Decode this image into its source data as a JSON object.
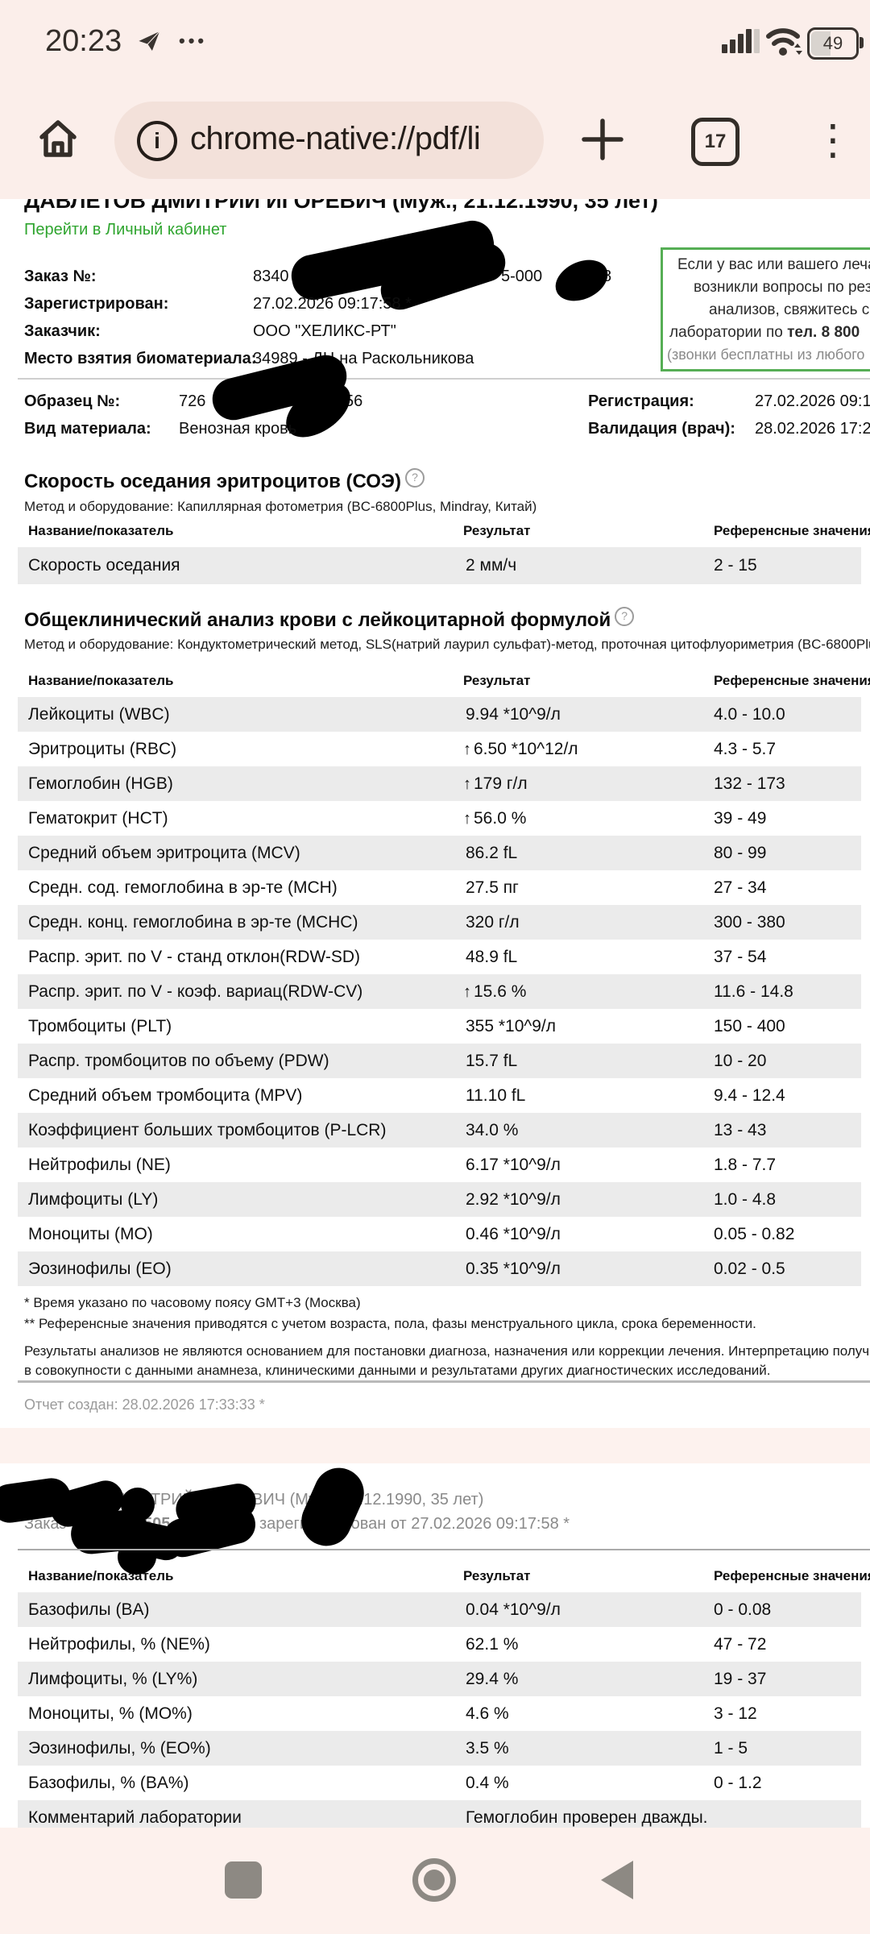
{
  "status_bar": {
    "time": "20:23",
    "battery_percent": "49"
  },
  "toolbar": {
    "url": "chrome-native://pdf/li",
    "tab_count": "17",
    "kebab_glyph": "⋮",
    "dots_glyph": "•••"
  },
  "page1": {
    "patient_header": "ДАВЛЕТОВ ДМИТРИЙ ИГОРЕВИЧ (Муж., 21.12.1990, 35 лет)",
    "account_link": "Перейти в Личный кабинет",
    "order": {
      "label": "Заказ №:",
      "frag1": "8340",
      "frag2": "5-000",
      "frag3": "8"
    },
    "registered": {
      "label": "Зарегистрирован:",
      "value": "27.02.2026 09:17:58 *"
    },
    "customer": {
      "label": "Заказчик:",
      "value": "ООО \"ХЕЛИКС-РТ\""
    },
    "site": {
      "label": "Место взятия биоматериала:",
      "value": "34989 - ДЦ на Раскольникова"
    },
    "notice": {
      "line1": "Если у вас или вашего леча",
      "line2": "возникли вопросы по рез",
      "line3": "анализов, свяжитесь с",
      "line4_text": "лаборатории по ",
      "line4_bold": "тел. 8 800",
      "line5": "(звонки бесплатны из любого"
    },
    "sample": {
      "label": "Образец №:",
      "frag1": "726",
      "frag2": "56"
    },
    "material": {
      "label": "Вид материала:",
      "value": "Венозная кровь"
    },
    "registration": {
      "label": "Регистрация:",
      "value": "27.02.2026 09:15"
    },
    "validation": {
      "label": "Валидация (врач):",
      "value": "28.02.2026 17:27"
    },
    "section1": {
      "title": "Скорость оседания эритроцитов (СОЭ)",
      "help": "?",
      "method": "Метод и оборудование: Капиллярная фотометрия (BC-6800Plus, Mindray, Китай)",
      "columns": [
        "Название/показатель",
        "Результат",
        "Референсные значения **"
      ],
      "rows": [
        {
          "name": "Скорость оседания",
          "flag": "",
          "result": "2 мм/ч",
          "ref": "2 - 15"
        }
      ]
    },
    "section2": {
      "title": "Общеклинический анализ крови с лейкоцитарной формулой",
      "help": "?",
      "method": "Метод и оборудование: Кондуктометрический метод, SLS(натрий лаурил сульфат)-метод, проточная цитофлуориметрия (BC-6800Plus, Mindray, Китай",
      "columns": [
        "Название/показатель",
        "Результат",
        "Референсные значения **"
      ],
      "rows": [
        {
          "name": "Лейкоциты (WBC)",
          "flag": "",
          "result": "9.94 *10^9/л",
          "ref": "4.0 - 10.0"
        },
        {
          "name": "Эритроциты (RBC)",
          "flag": "↑",
          "result": "6.50 *10^12/л",
          "ref": "4.3 - 5.7"
        },
        {
          "name": "Гемоглобин (HGB)",
          "flag": "↑",
          "result": "179 г/л",
          "ref": "132 - 173"
        },
        {
          "name": "Гематокрит (HCT)",
          "flag": "↑",
          "result": "56.0 %",
          "ref": "39 - 49"
        },
        {
          "name": "Средний объем эритроцита (MCV)",
          "flag": "",
          "result": "86.2 fL",
          "ref": "80 - 99"
        },
        {
          "name": "Средн. сод. гемоглобина в эр-те (MCH)",
          "flag": "",
          "result": "27.5 пг",
          "ref": "27 - 34"
        },
        {
          "name": "Средн. конц. гемоглобина в эр-те (MCHC)",
          "flag": "",
          "result": "320 г/л",
          "ref": "300 - 380"
        },
        {
          "name": "Распр. эрит. по V - станд отклон(RDW-SD)",
          "flag": "",
          "result": "48.9 fL",
          "ref": "37 - 54"
        },
        {
          "name": "Распр. эрит. по V - коэф. вариац(RDW-CV)",
          "flag": "↑",
          "result": "15.6 %",
          "ref": "11.6 - 14.8"
        },
        {
          "name": "Тромбоциты (PLT)",
          "flag": "",
          "result": "355 *10^9/л",
          "ref": "150 - 400"
        },
        {
          "name": "Распр. тромбоцитов по объему (PDW)",
          "flag": "",
          "result": "15.7 fL",
          "ref": "10 - 20"
        },
        {
          "name": "Средний объем тромбоцита (MPV)",
          "flag": "",
          "result": "11.10 fL",
          "ref": "9.4 - 12.4"
        },
        {
          "name": "Коэффициент больших тромбоцитов (P-LCR)",
          "flag": "",
          "result": "34.0 %",
          "ref": "13 - 43"
        },
        {
          "name": "Нейтрофилы (NE)",
          "flag": "",
          "result": "6.17 *10^9/л",
          "ref": "1.8 - 7.7"
        },
        {
          "name": "Лимфоциты (LY)",
          "flag": "",
          "result": "2.92 *10^9/л",
          "ref": "1.0 - 4.8"
        },
        {
          "name": "Моноциты (MO)",
          "flag": "",
          "result": "0.46 *10^9/л",
          "ref": "0.05 - 0.82"
        },
        {
          "name": "Эозинофилы (EO)",
          "flag": "",
          "result": "0.35 *10^9/л",
          "ref": "0.02 - 0.5"
        }
      ]
    },
    "footnote1": "* Время указано по часовому поясу GMT+3 (Москва)",
    "footnote2": "** Референсные значения приводятся с учетом возраста, пола, фазы менструального цикла, срока беременности.",
    "disclaimer_line1": "Результаты анализов не являются основанием для постановки диагноза, назначения или коррекции лечения. Интерпретацию полученных результат",
    "disclaimer_line2": "в совокупности с данными анамнеза, клиническими данными и результатами других диагностических исследований.",
    "report_created": "Отчет создан: 28.02.2026 17:33:33 *"
  },
  "page2": {
    "patient_header": "ДАВЛЕТОВ ДМИТРИЙ ИГОРЕВИЧ (Муж., 21.12.1990, 35 лет)",
    "order_prefix": "Заказ №",
    "order_bold1": "52 46505",
    "order_bold2": "4288,",
    "order_rest": "зарегистрирован от 27.02.2026 09:17:58 *",
    "columns": [
      "Название/показатель",
      "Результат",
      "Референсные значения **"
    ],
    "rows": [
      {
        "name": "Базофилы (BA)",
        "flag": "",
        "result": "0.04 *10^9/л",
        "ref": "0 - 0.08"
      },
      {
        "name": "Нейтрофилы, % (NE%)",
        "flag": "",
        "result": "62.1 %",
        "ref": "47 - 72"
      },
      {
        "name": "Лимфоциты, % (LY%)",
        "flag": "",
        "result": "29.4 %",
        "ref": "19 - 37"
      },
      {
        "name": "Моноциты, % (MO%)",
        "flag": "",
        "result": "4.6 %",
        "ref": "3 - 12"
      },
      {
        "name": "Эозинофилы, % (EO%)",
        "flag": "",
        "result": "3.5 %",
        "ref": "1 - 5"
      },
      {
        "name": "Базофилы, % (BA%)",
        "flag": "",
        "result": "0.4 %",
        "ref": "0 - 1.2"
      },
      {
        "name": "Комментарий лаборатории",
        "flag": "",
        "result": "Гемоглобин проверен дважды.",
        "ref": ""
      }
    ]
  },
  "colors": {
    "chrome_pink": "#fbeeea",
    "pill": "#f3e1da",
    "row_shade": "#ebebeb",
    "link_green": "#2fa52f",
    "notice_border": "#56ae55",
    "nav_pink": "#fdf1ed",
    "gray_text": "#8a8a8a"
  }
}
